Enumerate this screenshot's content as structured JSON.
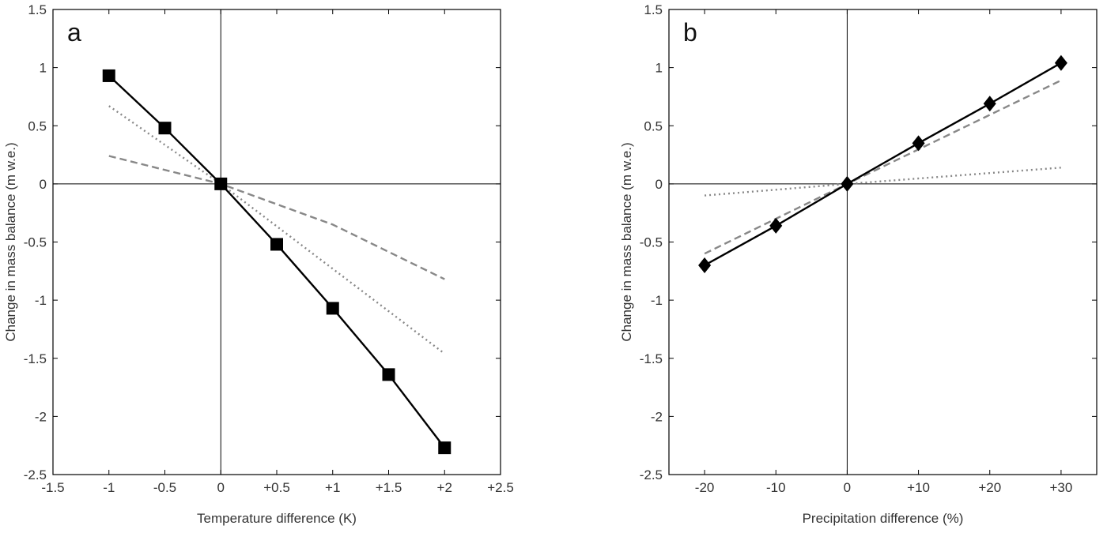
{
  "chart_data": [
    {
      "type": "line",
      "panel_label": "a",
      "xlabel": "Temperature difference (K)",
      "ylabel": "Change in mass balance (m w.e.)",
      "xlim": [
        -1.5,
        2.5
      ],
      "ylim": [
        -2.5,
        1.5
      ],
      "x_ticks": [
        -1.5,
        -1,
        -0.5,
        0,
        0.5,
        1,
        1.5,
        2,
        2.5
      ],
      "x_tick_labels": [
        "-1.5",
        "-1",
        "-0.5",
        "0",
        "+0.5",
        "+1",
        "+1.5",
        "+2",
        "+2.5"
      ],
      "y_ticks": [
        -2.5,
        -2,
        -1.5,
        -1,
        -0.5,
        0,
        0.5,
        1,
        1.5
      ],
      "y_tick_labels": [
        "-2.5",
        "-2",
        "-1.5",
        "-1",
        "-0.5",
        "0",
        "0.5",
        "1",
        "1.5"
      ],
      "zero_lines": true,
      "series": [
        {
          "style": "solid",
          "color": "#000000",
          "marker": "square",
          "x": [
            -1,
            -0.5,
            0,
            0.5,
            1,
            1.5,
            2
          ],
          "y": [
            0.93,
            0.48,
            0.0,
            -0.52,
            -1.07,
            -1.64,
            -2.27
          ]
        },
        {
          "style": "dotted",
          "color": "#888888",
          "marker": "none",
          "x": [
            -1,
            0,
            2
          ],
          "y": [
            0.67,
            0.0,
            -1.46
          ]
        },
        {
          "style": "dashed",
          "color": "#888888",
          "marker": "none",
          "x": [
            -1,
            0,
            1,
            2
          ],
          "y": [
            0.24,
            0.0,
            -0.35,
            -0.82
          ]
        }
      ]
    },
    {
      "type": "line",
      "panel_label": "b",
      "xlabel": "Precipitation difference (%)",
      "ylabel": "Change in mass balance (m w.e.)",
      "xlim": [
        -25,
        35
      ],
      "ylim": [
        -2.5,
        1.5
      ],
      "x_ticks": [
        -20,
        -10,
        0,
        10,
        20,
        30
      ],
      "x_tick_labels": [
        "-20",
        "-10",
        "0",
        "+10",
        "+20",
        "+30"
      ],
      "y_ticks": [
        -2.5,
        -2,
        -1.5,
        -1,
        -0.5,
        0,
        0.5,
        1,
        1.5
      ],
      "y_tick_labels": [
        "-2.5",
        "-2",
        "-1.5",
        "-1",
        "-0.5",
        "0",
        "0.5",
        "1",
        "1.5"
      ],
      "zero_lines": true,
      "series": [
        {
          "style": "solid",
          "color": "#000000",
          "marker": "diamond",
          "x": [
            -20,
            -10,
            0,
            10,
            20,
            30
          ],
          "y": [
            -0.7,
            -0.36,
            0.0,
            0.35,
            0.69,
            1.04
          ]
        },
        {
          "style": "dashed",
          "color": "#888888",
          "marker": "none",
          "x": [
            -20,
            0,
            30
          ],
          "y": [
            -0.6,
            0.0,
            0.89
          ]
        },
        {
          "style": "dotted",
          "color": "#888888",
          "marker": "none",
          "x": [
            -20,
            0,
            30
          ],
          "y": [
            -0.1,
            0.0,
            0.14
          ]
        }
      ]
    }
  ]
}
